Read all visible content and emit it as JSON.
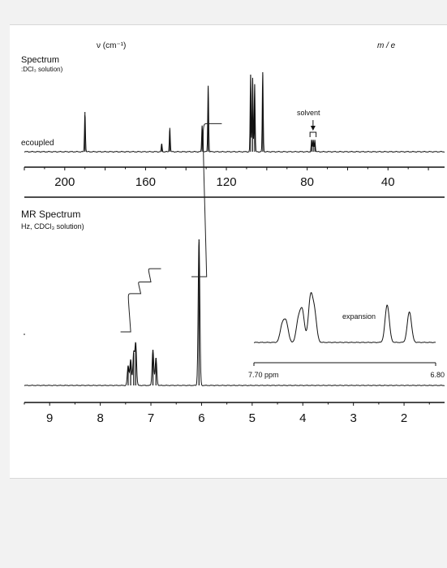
{
  "top_panel": {
    "header_nu": "ν (cm⁻¹)",
    "header_me": "m / e",
    "title_fragment": "Spectrum",
    "solvent_fragment": ":DCl₃ solution)",
    "decoupled_label": "ecoupled",
    "solvent_label": "solvent"
  },
  "bottom_panel": {
    "title_fragment": "MR Spectrum",
    "condition_fragment": "Hz, CDCl₃ solution)",
    "expansion_label": "expansion",
    "expansion_left": "7.70 ppm",
    "expansion_right": "6.80"
  },
  "chart_data": [
    {
      "type": "line",
      "title": "Spectrum",
      "subtitle": ":DCl₃ solution)",
      "xlabel": "",
      "ylabel": "",
      "xlim": [
        220,
        12
      ],
      "x_ticks": [
        200,
        160,
        120,
        80,
        40
      ],
      "baseline_label": "ecoupled",
      "annotation": "solvent",
      "series": [
        {
          "peaks": [
            {
              "x": 190,
              "height": 0.5
            },
            {
              "x": 152,
              "height": 0.1
            },
            {
              "x": 148,
              "height": 0.3
            },
            {
              "x": 132,
              "height": 0.33
            },
            {
              "x": 129,
              "height": 0.83
            },
            {
              "x": 108,
              "height": 0.97
            },
            {
              "x": 107,
              "height": 0.93
            },
            {
              "x": 106,
              "height": 0.85
            },
            {
              "x": 102,
              "height": 1.0
            },
            {
              "x": 77.8,
              "height": 0.15
            },
            {
              "x": 77.0,
              "height": 0.15
            },
            {
              "x": 76.2,
              "height": 0.15
            }
          ]
        }
      ]
    },
    {
      "type": "line",
      "title": "MR Spectrum",
      "subtitle": "Hz, CDCl₃ solution)",
      "xlabel": "",
      "ylabel": "",
      "xlim": [
        9.5,
        1.2
      ],
      "x_ticks": [
        9,
        8,
        7,
        6,
        5,
        4,
        3,
        2
      ],
      "series": [
        {
          "peaks": [
            {
              "x": 7.45,
              "height": 0.12
            },
            {
              "x": 7.4,
              "height": 0.16
            },
            {
              "x": 7.34,
              "height": 0.2
            },
            {
              "x": 7.3,
              "height": 0.26
            },
            {
              "x": 6.96,
              "height": 0.22
            },
            {
              "x": 6.9,
              "height": 0.17
            },
            {
              "x": 6.05,
              "height": 0.9
            }
          ]
        }
      ],
      "integral_steps": [
        {
          "x_start": 7.6,
          "x_end": 6.8,
          "levels": [
            0.0,
            0.23,
            0.3,
            0.38
          ]
        },
        {
          "x_start": 6.2,
          "x_end": 5.6,
          "levels": [
            0.0,
            0.92
          ]
        }
      ],
      "inset": {
        "label": "expansion",
        "xlim": [
          7.7,
          6.8
        ],
        "tick_labels": [
          "7.70 ppm",
          "6.80"
        ],
        "peaks": [
          {
            "x": 7.56,
            "height": 0.35
          },
          {
            "x": 7.54,
            "height": 0.4
          },
          {
            "x": 7.48,
            "height": 0.45
          },
          {
            "x": 7.46,
            "height": 0.62
          },
          {
            "x": 7.42,
            "height": 0.9
          },
          {
            "x": 7.4,
            "height": 0.6
          },
          {
            "x": 7.04,
            "height": 0.77
          },
          {
            "x": 6.93,
            "height": 0.63
          }
        ]
      }
    }
  ]
}
